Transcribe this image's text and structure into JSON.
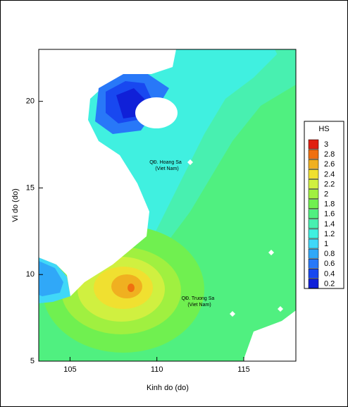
{
  "chart_data": {
    "type": "contour",
    "xlabel": "Kinh do (do)",
    "ylabel": "Vi do (do)",
    "xlim": [
      103.2,
      118
    ],
    "ylim": [
      5,
      23
    ],
    "xticks": [
      105,
      110,
      115
    ],
    "yticks": [
      5,
      10,
      15,
      20
    ],
    "annotations": [
      "QĐ. Hoang Sa",
      "(Viet Nam)",
      "QĐ. Truong Sa",
      "(Viet Nam)"
    ],
    "colorbar": {
      "title": "HS",
      "levels": [
        0.2,
        0.4,
        0.6,
        0.8,
        1,
        1.2,
        1.4,
        1.6,
        1.8,
        2,
        2.2,
        2.4,
        2.6,
        2.8,
        3
      ],
      "colors": [
        "#1020d8",
        "#1848f0",
        "#2878f8",
        "#30a8f8",
        "#40d8f8",
        "#40f0e0",
        "#48f0b0",
        "#50f080",
        "#70f050",
        "#a0f040",
        "#d0f040",
        "#f0e030",
        "#f0b020",
        "#f07010",
        "#e02010"
      ]
    }
  }
}
